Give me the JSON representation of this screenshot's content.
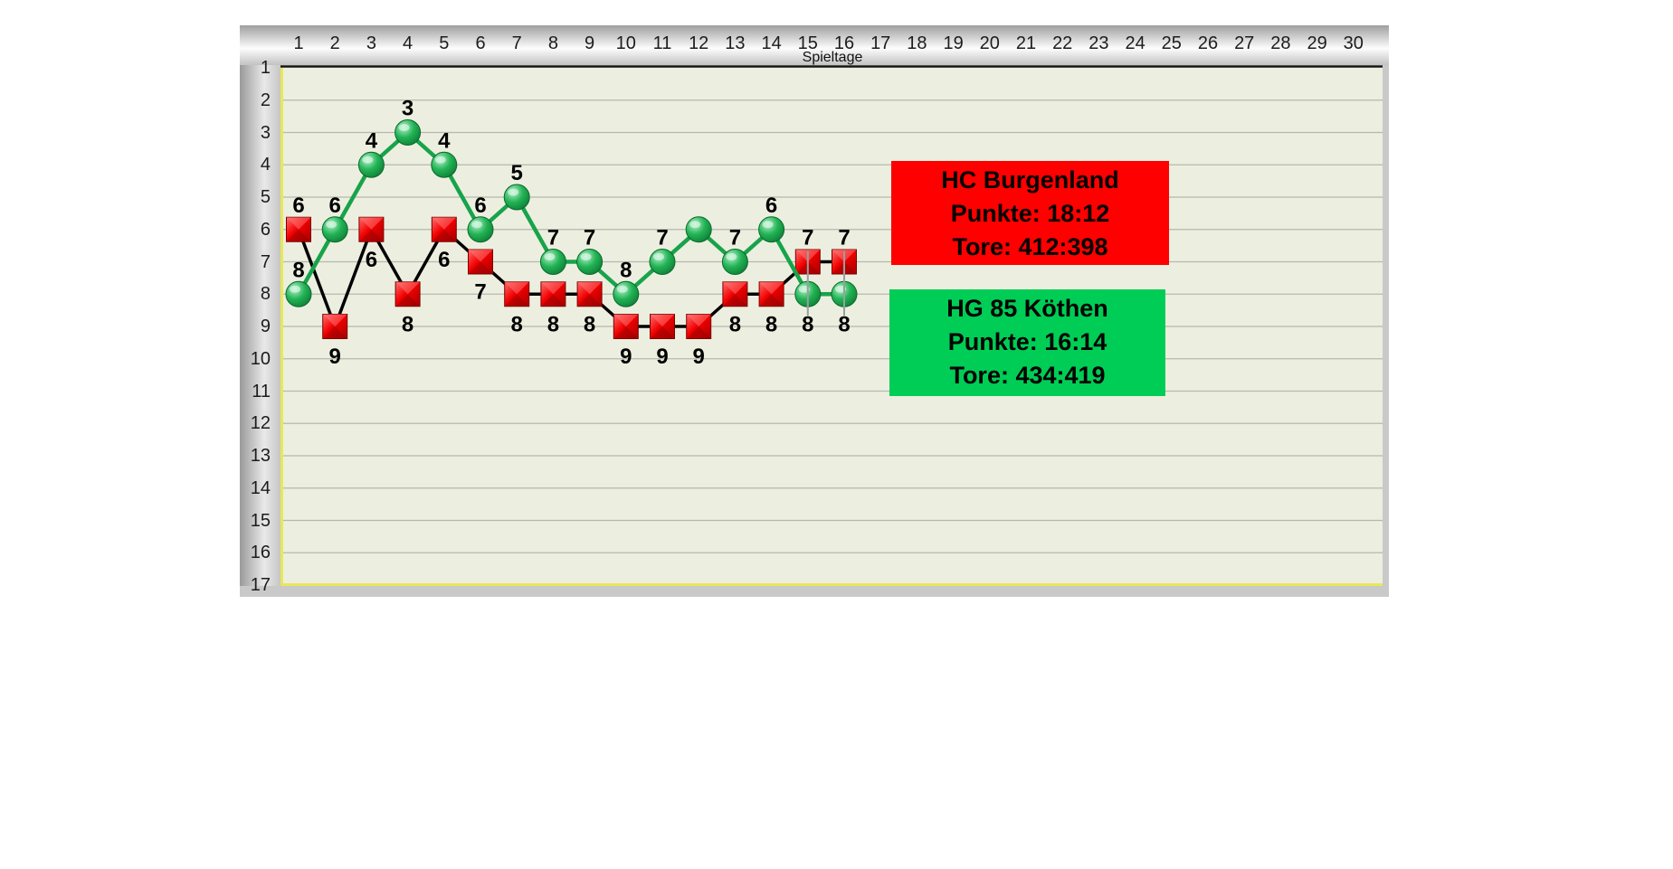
{
  "chart_data": {
    "type": "line",
    "title": "",
    "xlabel": "Spieltage",
    "ylabel": "",
    "xlim": [
      1,
      30
    ],
    "ylim": [
      1,
      17
    ],
    "y_axis_reversed": true,
    "grid": true,
    "x_ticks": [
      1,
      2,
      3,
      4,
      5,
      6,
      7,
      8,
      9,
      10,
      11,
      12,
      13,
      14,
      15,
      16,
      17,
      18,
      19,
      20,
      21,
      22,
      23,
      24,
      25,
      26,
      27,
      28,
      29,
      30
    ],
    "y_ticks": [
      1,
      2,
      3,
      4,
      5,
      6,
      7,
      8,
      9,
      10,
      11,
      12,
      13,
      14,
      15,
      16,
      17
    ],
    "categories": [
      1,
      2,
      3,
      4,
      5,
      6,
      7,
      8,
      9,
      10,
      11,
      12,
      13,
      14,
      15,
      16
    ],
    "series": [
      {
        "name": "HC Burgenland",
        "marker": "square",
        "marker_color": "#f20000",
        "line_color": "#000000",
        "values": [
          6,
          9,
          6,
          8,
          6,
          7,
          8,
          8,
          8,
          9,
          9,
          9,
          8,
          8,
          7,
          7
        ],
        "label_pos": [
          "above",
          "below",
          "below",
          "below",
          "below",
          "below",
          "below",
          "below",
          "below",
          "below",
          "below",
          "below",
          "below",
          "below",
          "above",
          "above"
        ]
      },
      {
        "name": "HG 85 Köthen",
        "marker": "circle",
        "marker_color": "#22b455",
        "line_color": "#18a34a",
        "values": [
          8,
          6,
          4,
          3,
          4,
          6,
          5,
          7,
          7,
          8,
          7,
          6,
          7,
          6,
          8,
          8
        ],
        "label_pos": [
          "above",
          "above",
          "above",
          "above",
          "above",
          "above",
          "above",
          "above",
          "above",
          "above",
          "above",
          "none",
          "above",
          "above",
          "below",
          "below"
        ]
      }
    ],
    "droplines": [
      15,
      16
    ],
    "legend_position": "inside-right"
  },
  "legend": {
    "team1": {
      "name": "HC Burgenland",
      "punkte": "Punkte: 18:12",
      "tore": "Tore: 412:398",
      "color": "#fe0000"
    },
    "team2": {
      "name": "HG 85 Köthen",
      "punkte": "Punkte: 16:14",
      "tore": "Tore: 434:419",
      "color": "#00cd55"
    }
  },
  "colors": {
    "plot_background": "#ecefdf",
    "gridline": "#b5b8ae",
    "plot_border": "#e9e75a",
    "frame": "#c9c9c9"
  }
}
